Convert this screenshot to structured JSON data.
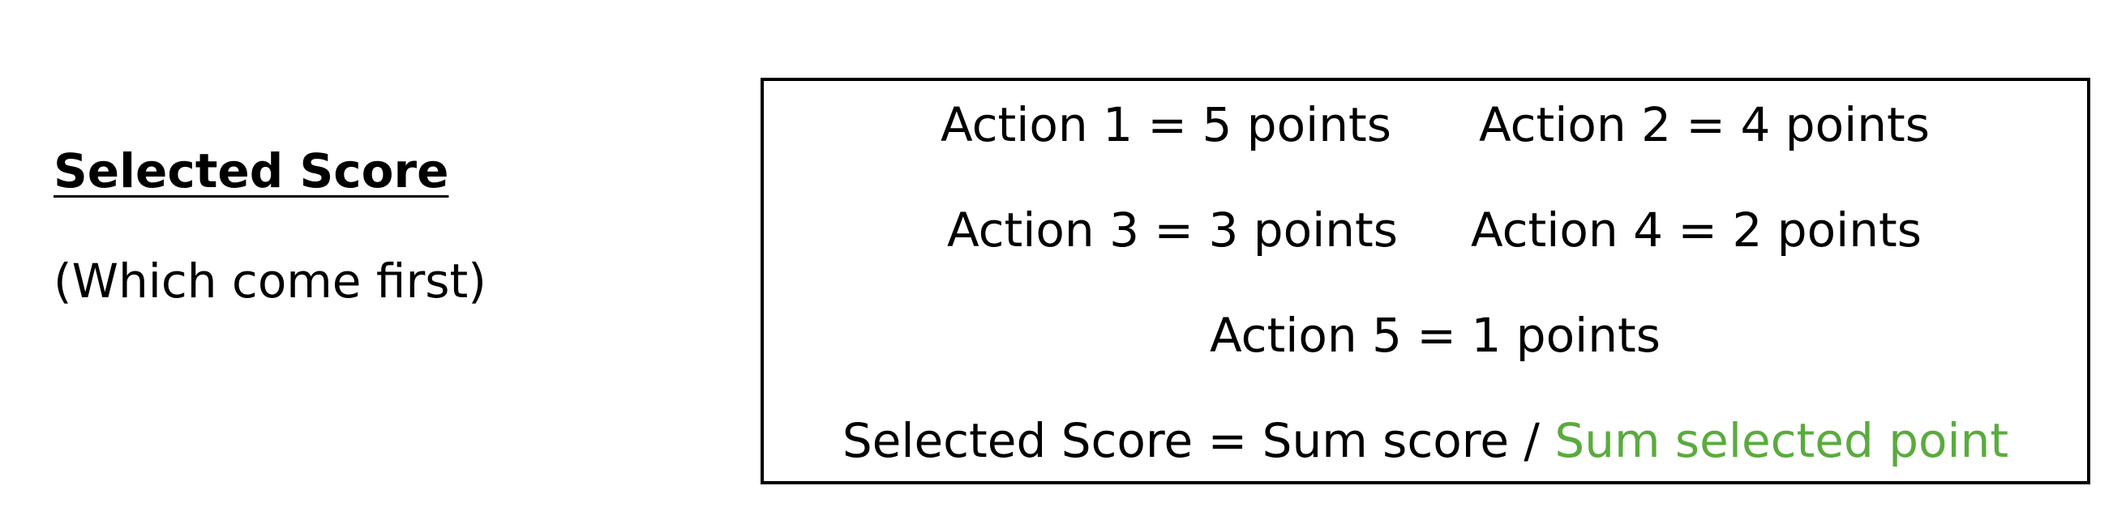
{
  "left_panel": {
    "title": "Selected Score",
    "subtitle": "(Which come first)"
  },
  "score_box": {
    "actions": [
      "Action 1 = 5 points",
      "Action 2 = 4 points",
      "Action 3 = 3 points",
      "Action 4 = 2 points",
      "Action 5 = 1 points"
    ],
    "formula": {
      "prefix": "Selected Score = Sum score / ",
      "highlight": "Sum selected point",
      "highlight_color": "#5aab3e"
    }
  }
}
